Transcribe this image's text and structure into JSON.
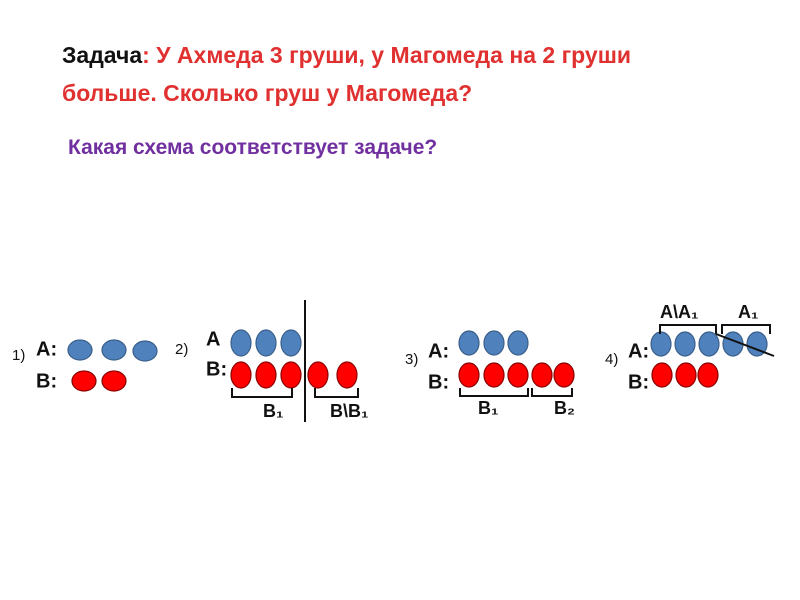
{
  "header": {
    "prefix": "Задача",
    "text": ": У Ахмеда 3 груши, у Магомеда на 2 груши больше. Сколько груш  у Магомеда?"
  },
  "question": "Какая схема соответствует задаче?",
  "schemes": [
    {
      "number": "1)",
      "a_label": "А:",
      "b_label": "В:"
    },
    {
      "number": "2)",
      "a_label": "А",
      "b_label": "В:",
      "braces": [
        "В₁",
        "В\\В₁"
      ]
    },
    {
      "number": "3)",
      "a_label": "А:",
      "b_label": "В:",
      "braces": [
        "В₁",
        "В₂"
      ]
    },
    {
      "number": "4)",
      "a_label": "А:",
      "b_label": "В:",
      "braces": [
        "А\\А₁",
        "А₁"
      ]
    }
  ]
}
